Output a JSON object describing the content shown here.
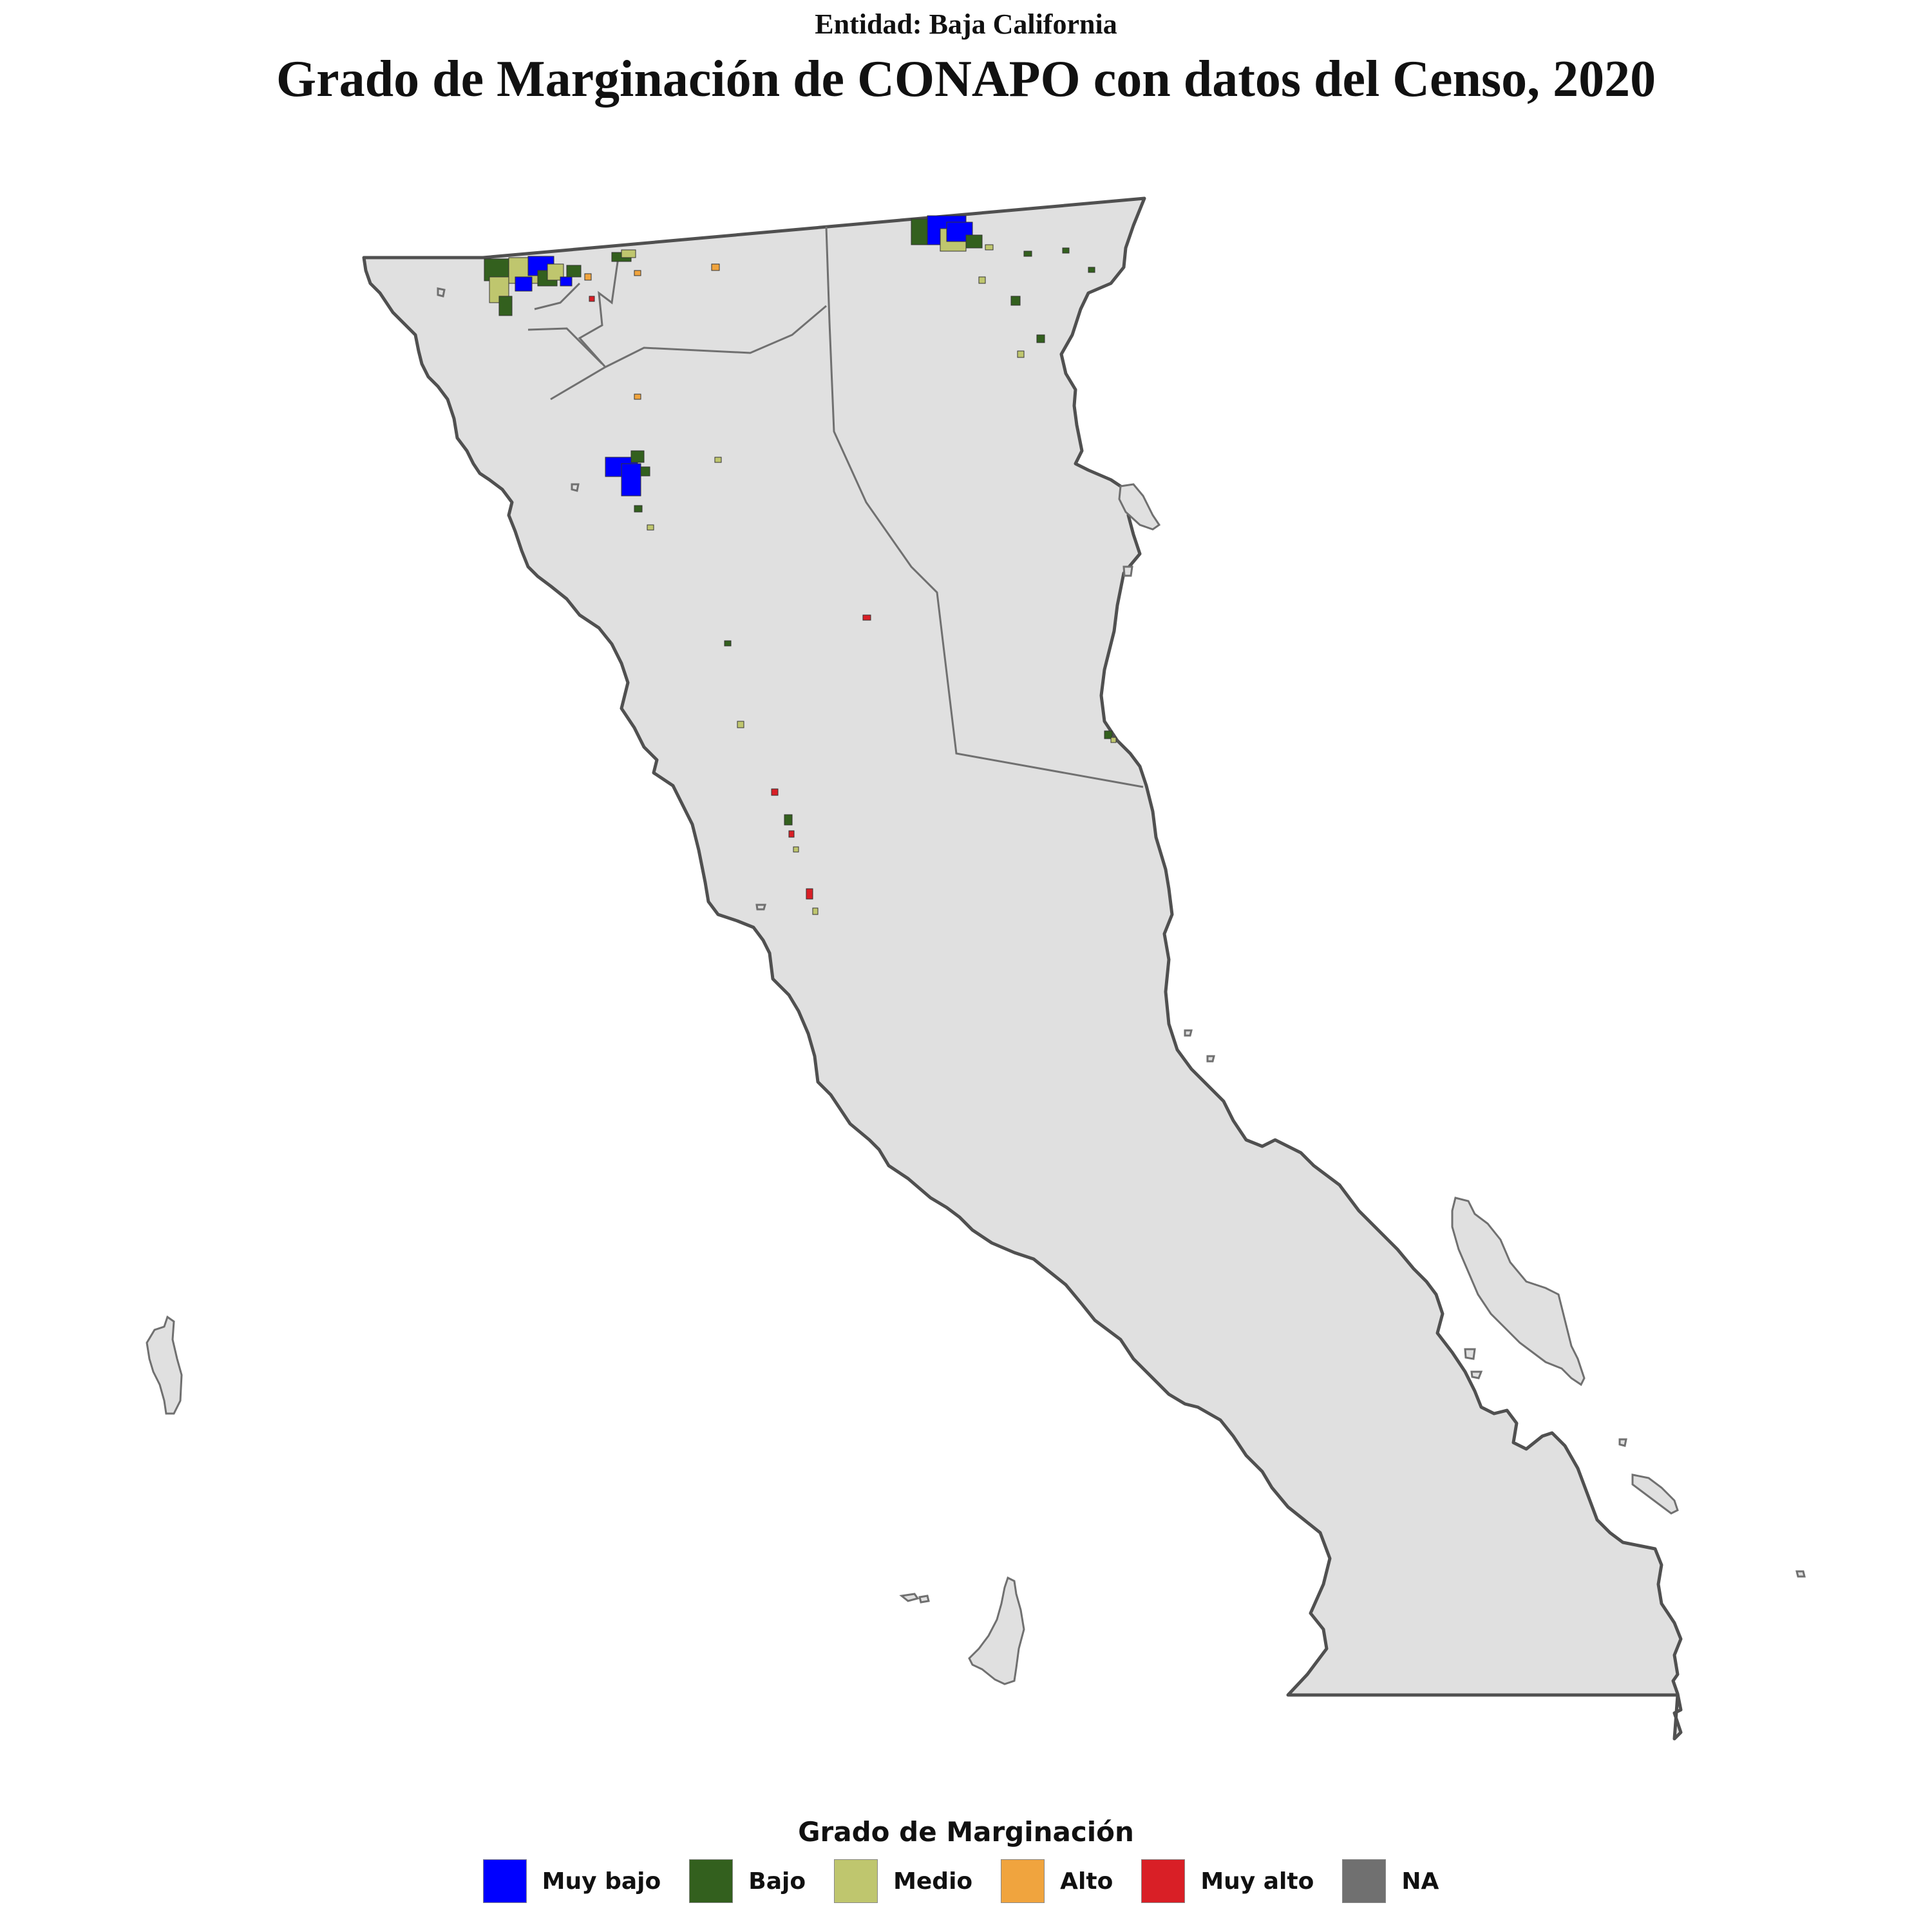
{
  "header": {
    "subtitle": "Entidad: Baja California",
    "title": "Grado de Marginación de CONAPO con datos del Censo, 2020"
  },
  "legend": {
    "title": "Grado de Marginación",
    "items": [
      {
        "label": "Muy bajo",
        "color": "#0000ff"
      },
      {
        "label": "Bajo",
        "color": "#33601e"
      },
      {
        "label": "Medio",
        "color": "#bfc66e"
      },
      {
        "label": "Alto",
        "color": "#f0a43e"
      },
      {
        "label": "Muy alto",
        "color": "#d91f26"
      },
      {
        "label": "NA",
        "color": "#707070"
      }
    ]
  },
  "map": {
    "land_color": "#e0e0e0",
    "outline_color": "#505050"
  }
}
